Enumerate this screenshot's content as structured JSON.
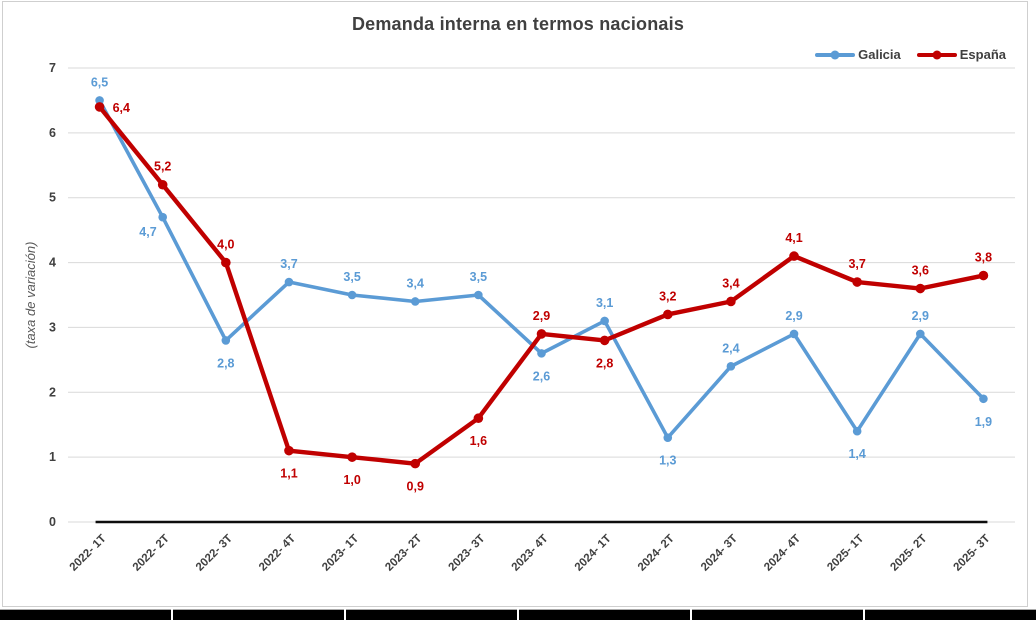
{
  "chart_data": {
    "type": "line",
    "title": "Demanda interna en termos nacionais",
    "ylabel": "(taxa de variación)",
    "xlabel": "",
    "ylim": [
      0,
      7
    ],
    "yticks": [
      0,
      1,
      2,
      3,
      4,
      5,
      6,
      7
    ],
    "grid": true,
    "legend_position": "top-right",
    "categories": [
      "2022- 1T",
      "2022- 2T",
      "2022- 3T",
      "2022- 4T",
      "2023- 1T",
      "2023- 2T",
      "2023- 3T",
      "2023- 4T",
      "2024- 1T",
      "2024- 2T",
      "2024- 3T",
      "2024- 4T",
      "2025- 1T",
      "2025- 2T",
      "2025- 3T"
    ],
    "series": [
      {
        "name": "Galicia",
        "color": "#5B9BD5",
        "values": [
          6.5,
          4.7,
          2.8,
          3.7,
          3.5,
          3.4,
          3.5,
          2.6,
          3.1,
          1.3,
          2.4,
          2.9,
          1.4,
          2.9,
          1.9
        ],
        "labels": [
          "6,5",
          "4,7",
          "2,8",
          "3,7",
          "3,5",
          "3,4",
          "3,5",
          "2,6",
          "3,1",
          "1,3",
          "2,4",
          "2,9",
          "1,4",
          "2,9",
          "1,9"
        ],
        "label_positions": [
          "above",
          "below-left",
          "below",
          "above",
          "above",
          "above",
          "above",
          "below",
          "above",
          "below",
          "above",
          "above",
          "below",
          "above",
          "below"
        ]
      },
      {
        "name": "España",
        "color": "#C00000",
        "values": [
          6.4,
          5.2,
          4.0,
          1.1,
          1.0,
          0.9,
          1.6,
          2.9,
          2.8,
          3.2,
          3.4,
          4.1,
          3.7,
          3.6,
          3.8
        ],
        "labels": [
          "6,4",
          "5,2",
          "4,0",
          "1,1",
          "1,0",
          "0,9",
          "1,6",
          "2,9",
          "2,8",
          "3,2",
          "3,4",
          "4,1",
          "3,7",
          "3,6",
          "3,8"
        ],
        "label_positions": [
          "right",
          "above",
          "above",
          "below",
          "below",
          "below",
          "below",
          "above",
          "below",
          "above",
          "above",
          "above",
          "above",
          "above",
          "above"
        ]
      }
    ]
  }
}
